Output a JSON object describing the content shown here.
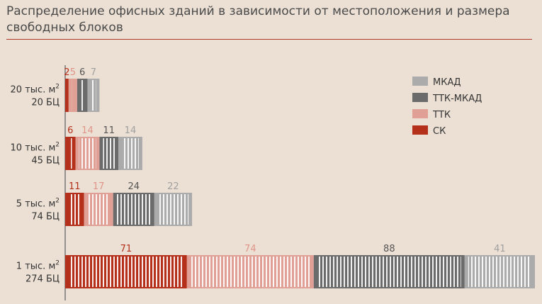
{
  "chart_data": {
    "type": "bar",
    "orientation": "horizontal",
    "stacked": true,
    "title": "Распределение офисных зданий в зависимости от местоположения и размера свободных блоков",
    "categories": [
      {
        "line1": "20 тыс. м",
        "sup": "2",
        "line2": "20 БЦ"
      },
      {
        "line1": "10 тыс. м",
        "sup": "2",
        "line2": "45 БЦ"
      },
      {
        "line1": "5  тыс. м",
        "sup": "2",
        "line2": "74 БЦ"
      },
      {
        "line1": "1 тыс. м",
        "sup": "2",
        "line2": "274 БЦ"
      }
    ],
    "series": [
      {
        "name": "СК",
        "color": "#b5301a",
        "label_color": "#b5301a",
        "values": [
          2,
          6,
          11,
          71
        ]
      },
      {
        "name": "ТТК",
        "color": "#e0a096",
        "label_color": "#df9488",
        "values": [
          5,
          14,
          17,
          74
        ]
      },
      {
        "name": "ТТК-МКАД",
        "color": "#6b6b6b",
        "label_color": "#555555",
        "values": [
          6,
          11,
          24,
          88
        ]
      },
      {
        "name": "МКАД",
        "color": "#ababab",
        "label_color": "#a0a0a0",
        "values": [
          7,
          14,
          22,
          41
        ]
      }
    ],
    "legend_order": [
      "МКАД",
      "ТТК-МКАД",
      "ТТК",
      "СК"
    ],
    "legend_position": "top-right",
    "grid": false
  }
}
